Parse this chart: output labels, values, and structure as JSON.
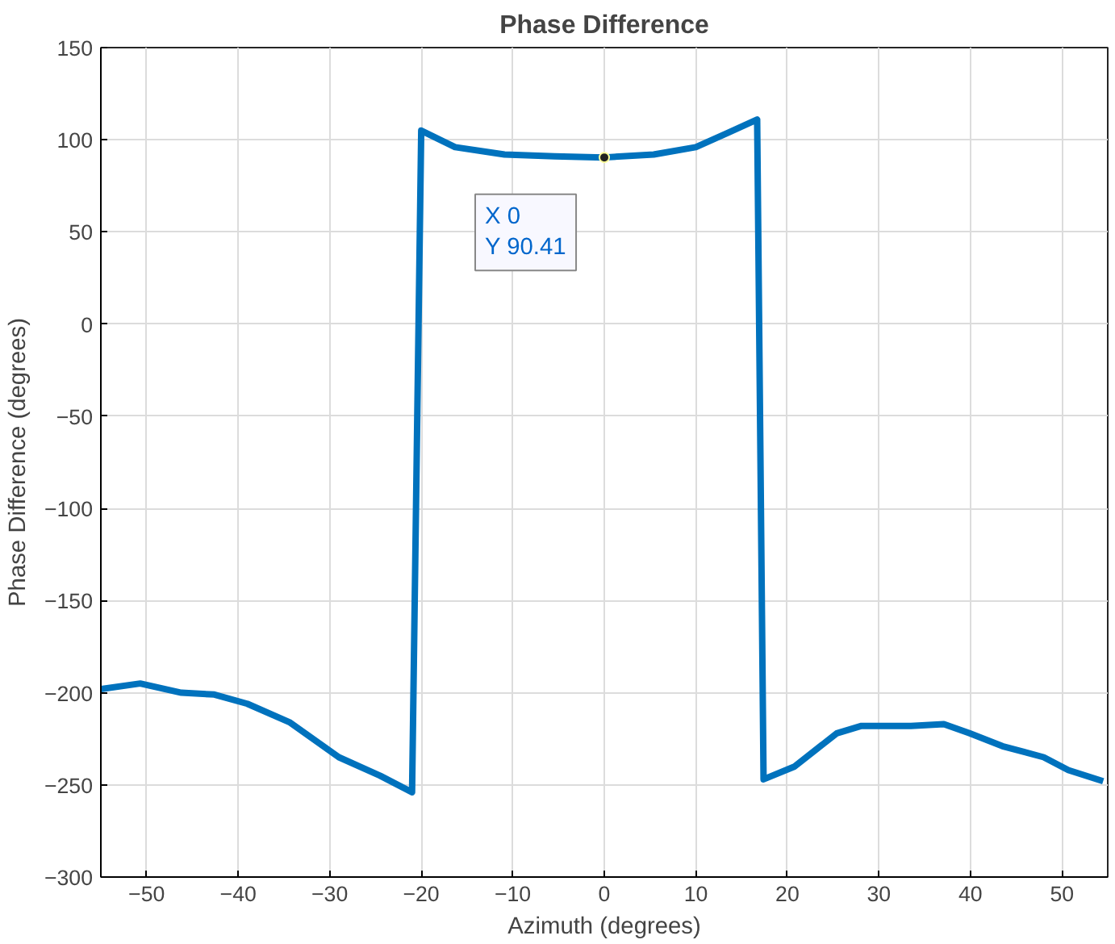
{
  "chart_data": {
    "type": "line",
    "title": "Phase Difference",
    "xlabel": "Azimuth (degrees)",
    "ylabel": "Phase Difference (degrees)",
    "x": [
      -55,
      -50.7,
      -46.2,
      -42.6,
      -39,
      -34.4,
      -29,
      -24.5,
      -21,
      -20,
      -16.3,
      -10.9,
      -5.4,
      0,
      5.4,
      10,
      13.6,
      16.7,
      17.4,
      20.8,
      25.4,
      28.1,
      33.5,
      37.1,
      39.9,
      43.5,
      48,
      50.7,
      54.5
    ],
    "series": [
      {
        "color": "#0072bd",
        "values": [
          -198,
          -195,
          -200,
          -201,
          -206,
          -216,
          -235,
          -245,
          -254,
          105,
          96,
          92,
          91,
          90.41,
          92,
          96,
          104,
          111,
          -247,
          -240,
          -222,
          -218,
          -218,
          -217,
          -222,
          -229,
          -235,
          -242,
          -248
        ]
      }
    ],
    "xlim": [
      -55,
      55
    ],
    "ylim": [
      -300,
      150
    ],
    "xticks": [
      -50,
      -40,
      -30,
      -20,
      -10,
      0,
      10,
      20,
      30,
      40,
      50
    ],
    "yticks": [
      -300,
      -250,
      -200,
      -150,
      -100,
      -50,
      0,
      50,
      100,
      150
    ],
    "grid": true,
    "marker": "none",
    "line_style": "solid",
    "annotations": [
      {
        "text": "X 0\nY 90.41",
        "x": 0,
        "y": 90.41
      }
    ]
  }
}
